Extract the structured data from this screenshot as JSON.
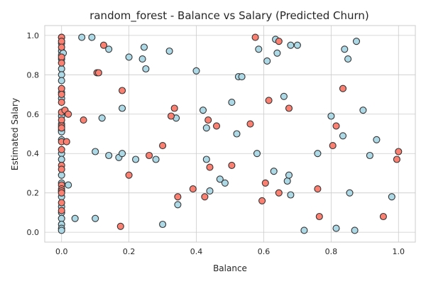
{
  "chart_data": {
    "type": "scatter",
    "title": "random_forest - Balance vs Salary (Predicted Churn)",
    "xlabel": "Balance",
    "ylabel": "Estimated Salary",
    "xlim": [
      -0.05,
      1.05
    ],
    "ylim": [
      -0.05,
      1.05
    ],
    "xticks": [
      "0.0",
      "0.2",
      "0.4",
      "0.6",
      "0.8",
      "1.0"
    ],
    "yticks": [
      "0.0",
      "0.2",
      "0.4",
      "0.6",
      "0.8",
      "1.0"
    ],
    "grid": true,
    "colors": {
      "not_churn": "#add8e6",
      "churn": "#fa8072",
      "edge": "#333333"
    },
    "series": [
      {
        "values": [
          [
            0,
            0.99
          ],
          [
            0,
            0.96
          ],
          [
            0,
            0.92
          ],
          [
            0,
            0.9
          ],
          [
            0,
            0.88
          ],
          [
            0,
            0.83
          ],
          [
            0,
            0.8
          ],
          [
            0,
            0.77
          ],
          [
            0,
            0.71
          ],
          [
            0,
            0.68
          ],
          [
            0,
            0.59
          ],
          [
            0,
            0.55
          ],
          [
            0,
            0.52
          ],
          [
            0,
            0.51
          ],
          [
            0,
            0.47
          ],
          [
            0,
            0.4
          ],
          [
            0,
            0.37
          ],
          [
            0,
            0.29
          ],
          [
            0,
            0.25
          ],
          [
            0,
            0.21
          ],
          [
            0,
            0.18
          ],
          [
            0,
            0.13
          ],
          [
            0,
            0.1
          ],
          [
            0,
            0.07
          ],
          [
            0,
            0.04
          ],
          [
            0,
            0.02
          ],
          [
            0,
            0.01
          ],
          [
            0.005,
            0.91
          ],
          [
            0.02,
            0.24
          ],
          [
            0.04,
            0.07
          ],
          [
            0.06,
            0.99
          ],
          [
            0.09,
            0.99
          ],
          [
            0.1,
            0.41
          ],
          [
            0.1,
            0.07
          ],
          [
            0.12,
            0.58
          ],
          [
            0.14,
            0.93
          ],
          [
            0.14,
            0.39
          ],
          [
            0.17,
            0.38
          ],
          [
            0.18,
            0.63
          ],
          [
            0.18,
            0.4
          ],
          [
            0.2,
            0.89
          ],
          [
            0.22,
            0.37
          ],
          [
            0.24,
            0.88
          ],
          [
            0.245,
            0.94
          ],
          [
            0.25,
            0.83
          ],
          [
            0.28,
            0.37
          ],
          [
            0.3,
            0.04
          ],
          [
            0.32,
            0.92
          ],
          [
            0.34,
            0.58
          ],
          [
            0.345,
            0.14
          ],
          [
            0.4,
            0.82
          ],
          [
            0.42,
            0.62
          ],
          [
            0.43,
            0.53
          ],
          [
            0.43,
            0.37
          ],
          [
            0.44,
            0.21
          ],
          [
            0.47,
            0.27
          ],
          [
            0.485,
            0.25
          ],
          [
            0.505,
            0.66
          ],
          [
            0.52,
            0.5
          ],
          [
            0.525,
            0.79
          ],
          [
            0.535,
            0.79
          ],
          [
            0.58,
            0.4
          ],
          [
            0.585,
            0.93
          ],
          [
            0.61,
            0.87
          ],
          [
            0.63,
            0.31
          ],
          [
            0.635,
            0.98
          ],
          [
            0.64,
            0.91
          ],
          [
            0.66,
            0.69
          ],
          [
            0.67,
            0.26
          ],
          [
            0.675,
            0.29
          ],
          [
            0.68,
            0.95
          ],
          [
            0.68,
            0.19
          ],
          [
            0.7,
            0.95
          ],
          [
            0.72,
            0.01
          ],
          [
            0.76,
            0.4
          ],
          [
            0.8,
            0.59
          ],
          [
            0.815,
            0.02
          ],
          [
            0.835,
            0.49
          ],
          [
            0.84,
            0.93
          ],
          [
            0.85,
            0.88
          ],
          [
            0.855,
            0.2
          ],
          [
            0.87,
            0.01
          ],
          [
            0.875,
            0.97
          ],
          [
            0.895,
            0.62
          ],
          [
            0.915,
            0.39
          ],
          [
            0.935,
            0.47
          ],
          [
            0.98,
            0.18
          ]
        ]
      },
      {
        "values": [
          [
            0,
            0.99
          ],
          [
            0,
            0.97
          ],
          [
            0,
            0.94
          ],
          [
            0,
            0.89
          ],
          [
            0,
            0.86
          ],
          [
            0,
            0.73
          ],
          [
            0,
            0.7
          ],
          [
            0,
            0.66
          ],
          [
            0,
            0.61
          ],
          [
            0,
            0.57
          ],
          [
            0,
            0.54
          ],
          [
            0,
            0.53
          ],
          [
            0,
            0.46
          ],
          [
            0,
            0.42
          ],
          [
            0,
            0.34
          ],
          [
            0,
            0.32
          ],
          [
            0,
            0.24
          ],
          [
            0,
            0.22
          ],
          [
            0,
            0.21
          ],
          [
            0,
            0.2
          ],
          [
            0,
            0.15
          ],
          [
            0,
            0.11
          ],
          [
            0.01,
            0.62
          ],
          [
            0.015,
            0.46
          ],
          [
            0.02,
            0.6
          ],
          [
            0.065,
            0.57
          ],
          [
            0.105,
            0.81
          ],
          [
            0.11,
            0.81
          ],
          [
            0.125,
            0.95
          ],
          [
            0.175,
            0.03
          ],
          [
            0.18,
            0.72
          ],
          [
            0.2,
            0.29
          ],
          [
            0.26,
            0.39
          ],
          [
            0.3,
            0.44
          ],
          [
            0.325,
            0.59
          ],
          [
            0.335,
            0.63
          ],
          [
            0.345,
            0.18
          ],
          [
            0.39,
            0.22
          ],
          [
            0.425,
            0.18
          ],
          [
            0.435,
            0.57
          ],
          [
            0.44,
            0.33
          ],
          [
            0.46,
            0.54
          ],
          [
            0.505,
            0.34
          ],
          [
            0.56,
            0.55
          ],
          [
            0.575,
            0.99
          ],
          [
            0.595,
            0.16
          ],
          [
            0.605,
            0.25
          ],
          [
            0.615,
            0.67
          ],
          [
            0.645,
            0.97
          ],
          [
            0.645,
            0.2
          ],
          [
            0.675,
            0.63
          ],
          [
            0.76,
            0.22
          ],
          [
            0.765,
            0.08
          ],
          [
            0.805,
            0.44
          ],
          [
            0.815,
            0.54
          ],
          [
            0.835,
            0.73
          ],
          [
            0.955,
            0.08
          ],
          [
            0.995,
            0.37
          ],
          [
            1.0,
            0.41
          ]
        ]
      }
    ]
  }
}
